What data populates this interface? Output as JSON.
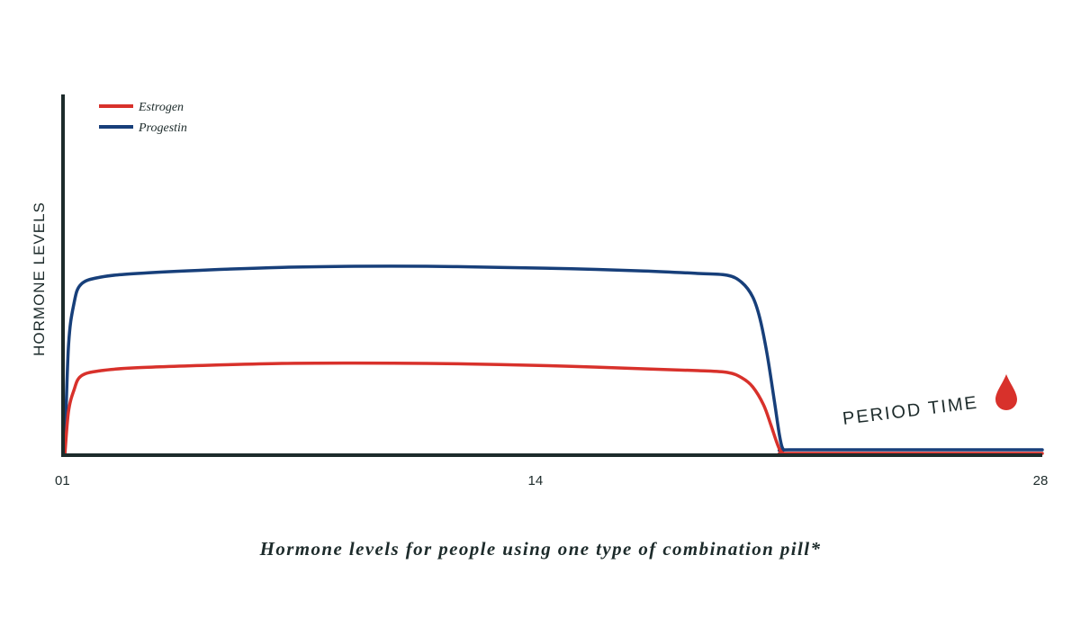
{
  "chart_data": {
    "type": "line",
    "title": "",
    "caption": "Hormone levels for people using one type of combination pill*",
    "xlabel": "",
    "ylabel": "HORMONE LEVELS",
    "xlim": [
      1,
      28
    ],
    "ylim": [
      0,
      100
    ],
    "x_ticks": [
      "01",
      "14",
      "28"
    ],
    "x_tick_values": [
      1,
      14,
      28
    ],
    "grid": false,
    "legend": "top-left",
    "annotation": {
      "text": "PERIOD TIME",
      "icon": "blood-drop-icon",
      "x": 24.5
    },
    "colors": {
      "estrogen": "#d8312b",
      "progestin": "#173f7a",
      "axis": "#1d2b2b",
      "drop": "#d8312b"
    },
    "series": [
      {
        "name": "Estrogen",
        "x": [
          1,
          1.1,
          1.25,
          1.45,
          2,
          3,
          5,
          7,
          9,
          11,
          13,
          15,
          17,
          18.5,
          19.3,
          19.7,
          20,
          20.3,
          20.5,
          20.65,
          20.75,
          20.85,
          21,
          24,
          28
        ],
        "y": [
          0,
          12,
          18,
          22,
          23.5,
          24.3,
          25,
          25.5,
          25.6,
          25.5,
          25.2,
          24.7,
          24,
          23.5,
          23,
          21.5,
          19,
          14,
          8.5,
          4,
          1.5,
          0.5,
          0.5,
          0.5,
          0.5
        ]
      },
      {
        "name": "Progestin",
        "x": [
          1,
          1.1,
          1.25,
          1.45,
          2,
          3,
          5,
          7,
          9,
          11,
          13,
          15,
          17,
          18.5,
          19.3,
          19.7,
          20,
          20.2,
          20.4,
          20.6,
          20.75,
          20.85,
          21,
          24,
          28
        ],
        "y": [
          0,
          30,
          42,
          47.5,
          49.5,
          50.5,
          51.5,
          52.2,
          52.5,
          52.5,
          52.2,
          51.8,
          51.2,
          50.5,
          50,
          48,
          44,
          38,
          28,
          15,
          5,
          1.5,
          1.5,
          1.5,
          1.5
        ]
      }
    ]
  }
}
